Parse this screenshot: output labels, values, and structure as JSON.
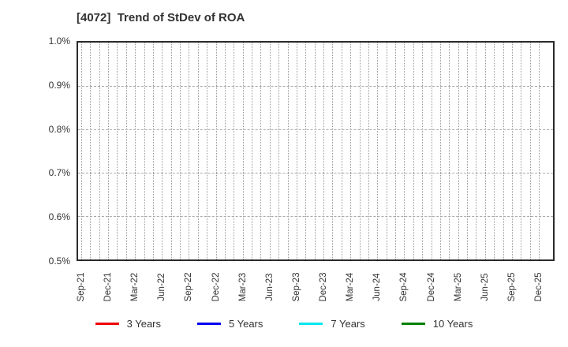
{
  "title": "[4072]  Trend of StDev of ROA",
  "chart_data": {
    "type": "line",
    "title": "[4072]  Trend of StDev of ROA",
    "xlabel": "",
    "ylabel": "",
    "x_tick_labels": [
      "Sep-21",
      "Dec-21",
      "Mar-22",
      "Jun-22",
      "Sep-22",
      "Dec-22",
      "Mar-23",
      "Jun-23",
      "Sep-23",
      "Dec-23",
      "Mar-24",
      "Jun-24",
      "Sep-24",
      "Dec-24",
      "Mar-25",
      "Jun-25",
      "Sep-25",
      "Dec-25"
    ],
    "months_per_label": 3,
    "n_minor_x_intervals": 51,
    "yticks": [
      0.5,
      0.6,
      0.7,
      0.8,
      0.9,
      1.0
    ],
    "y_tick_labels": [
      "0.5%",
      "0.6%",
      "0.7%",
      "0.8%",
      "0.9%",
      "1.0%"
    ],
    "ylim": [
      0.5,
      1.0
    ],
    "y_unit": "%",
    "grid": true,
    "legend_position": "bottom",
    "series": [
      {
        "name": "3 Years",
        "color": "#ee0000",
        "values": []
      },
      {
        "name": "5 Years",
        "color": "#0000ee",
        "values": []
      },
      {
        "name": "7 Years",
        "color": "#00e5ee",
        "values": []
      },
      {
        "name": "10 Years",
        "color": "#008000",
        "values": []
      }
    ],
    "note": "Plot area is empty: no data points are drawn for any series; only gridlines are visible."
  },
  "colors": {
    "axis_border": "#2b2b2b",
    "grid": "#9e9e9e",
    "text": "#333333",
    "background": "#ffffff"
  }
}
